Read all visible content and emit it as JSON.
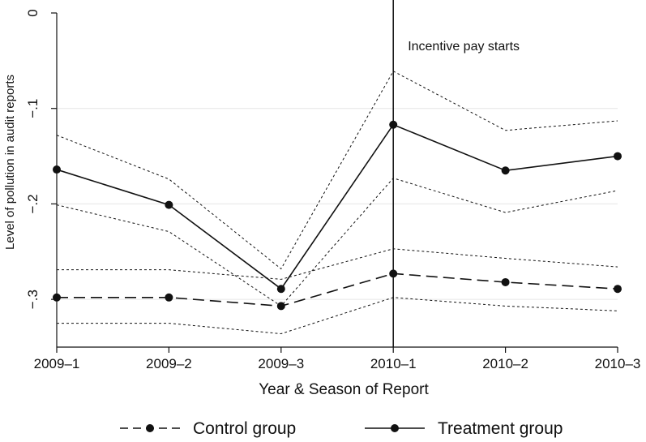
{
  "chart_data": {
    "type": "line",
    "title": "",
    "xlabel": "Year & Season of Report",
    "ylabel": "Level of pollution in audit reports",
    "categories": [
      "2009–1",
      "2009–2",
      "2009–3",
      "2010–1",
      "2010–2",
      "2010–3"
    ],
    "ylim": [
      -0.35,
      0
    ],
    "yticks": [
      {
        "value": 0,
        "label": "0"
      },
      {
        "value": -0.1,
        "label": "−.1"
      },
      {
        "value": -0.2,
        "label": "−.2"
      },
      {
        "value": -0.3,
        "label": "−.3"
      }
    ],
    "grid": "horizontal",
    "legend_position": "bottom",
    "series": [
      {
        "name": "Treatment group",
        "line_style": "solid",
        "values": [
          -0.164,
          -0.201,
          -0.289,
          -0.117,
          -0.165,
          -0.15
        ],
        "ci_upper": [
          -0.128,
          -0.174,
          -0.268,
          -0.061,
          -0.123,
          -0.113
        ],
        "ci_lower": [
          -0.201,
          -0.229,
          -0.307,
          -0.173,
          -0.209,
          -0.186
        ]
      },
      {
        "name": "Control group",
        "line_style": "dashed",
        "values": [
          -0.298,
          -0.298,
          -0.307,
          -0.273,
          -0.282,
          -0.289
        ],
        "ci_upper": [
          -0.269,
          -0.269,
          -0.279,
          -0.247,
          -0.257,
          -0.266
        ],
        "ci_lower": [
          -0.325,
          -0.325,
          -0.336,
          -0.298,
          -0.307,
          -0.312
        ]
      }
    ],
    "annotations": [
      {
        "text": "Incentive pay starts",
        "at_category": "2010–1",
        "type": "vertical-line"
      }
    ],
    "colors": {
      "line": "#111111",
      "grid": "#e6e6e6",
      "background": "#ffffff"
    }
  }
}
